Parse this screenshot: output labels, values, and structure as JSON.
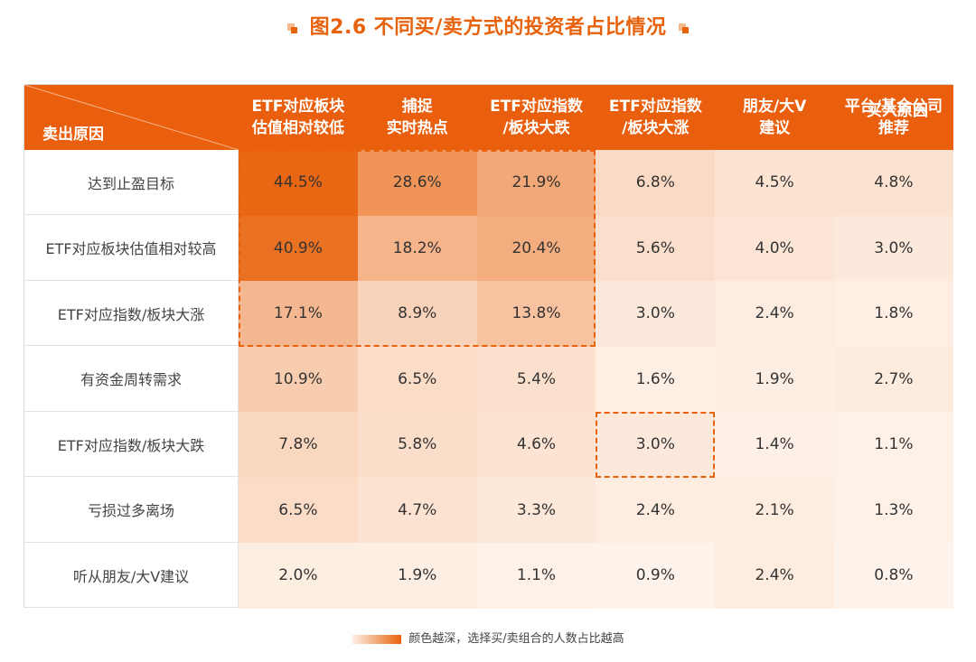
{
  "title": "图2.6  不同买/卖方式的投资者占比情况",
  "chart_data": {
    "type": "heatmap",
    "title": "图2.6  不同买/卖方式的投资者占比情况",
    "corner_column_axis": "买入原因",
    "corner_row_axis": "卖出原因",
    "columns": [
      [
        "ETF对应板块",
        "估值相对较低"
      ],
      [
        "捕捉",
        "实时热点"
      ],
      [
        "ETF对应指数",
        "/板块大跌"
      ],
      [
        "ETF对应指数",
        "/板块大涨"
      ],
      [
        "朋友/大V",
        "建议"
      ],
      [
        "平台/基金公司",
        "推荐"
      ]
    ],
    "rows": [
      "达到止盈目标",
      "ETF对应板块估值相对较高",
      "ETF对应指数/板块大涨",
      "有资金周转需求",
      "ETF对应指数/板块大跌",
      "亏损过多离场",
      "听从朋友/大V建议"
    ],
    "values": [
      [
        44.5,
        28.6,
        21.9,
        6.8,
        4.5,
        4.8
      ],
      [
        40.9,
        18.2,
        20.4,
        5.6,
        4.0,
        3.0
      ],
      [
        17.1,
        8.9,
        13.8,
        3.0,
        2.4,
        1.8
      ],
      [
        10.9,
        6.5,
        5.4,
        1.6,
        1.9,
        2.7
      ],
      [
        7.8,
        5.8,
        4.6,
        3.0,
        1.4,
        1.1
      ],
      [
        6.5,
        4.7,
        3.3,
        2.4,
        2.1,
        1.3
      ],
      [
        2.0,
        1.9,
        1.1,
        0.9,
        2.4,
        0.8
      ]
    ],
    "unit": "%",
    "highlights": [
      {
        "rows": [
          0,
          2
        ],
        "cols": [
          0,
          2
        ]
      },
      {
        "rows": [
          4,
          4
        ],
        "cols": [
          3,
          3
        ]
      }
    ],
    "legend": "颜色越深，选择买/卖组合的人数占比越高"
  },
  "colors": {
    "accent": "#e8620c",
    "header_bg": "#ea5f0d",
    "cell_low": "#fff7f1",
    "cell_high": "#e8620c"
  }
}
